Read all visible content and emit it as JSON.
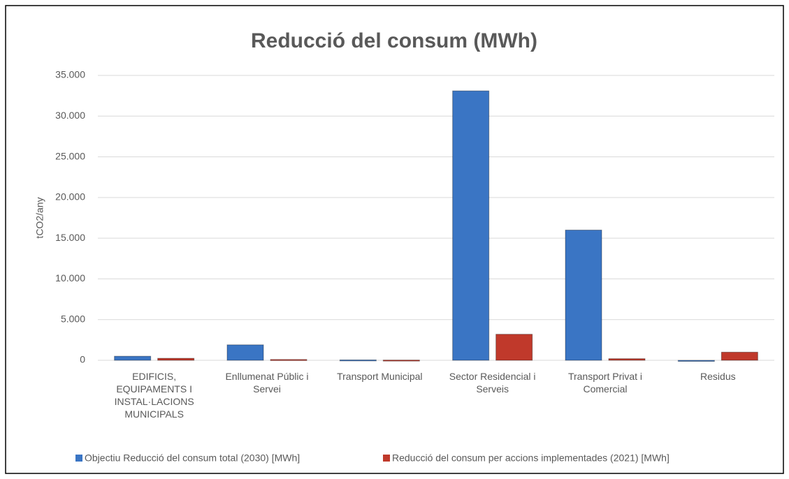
{
  "chart_data": {
    "type": "bar",
    "title": "Reducció del consum (MWh)",
    "y_label": "tCO2/any",
    "categories": [
      "EDIFICIS, EQUIPAMENTS I INSTAL·LACIONS MUNICIPALS",
      "Enllumenat Públic i Servei",
      "Transport Municipal",
      "Sector Residencial i Serveis",
      "Transport Privat i Comercial",
      "Residus"
    ],
    "series": [
      {
        "name": "Objectiu Reducció del consum total (2030) [MWh]",
        "color": "#3a75c4",
        "values": [
          500,
          1900,
          50,
          33100,
          16000,
          0
        ]
      },
      {
        "name": "Reducció del consum per accions implementades (2021) [MWh]",
        "color": "#c0392b",
        "values": [
          250,
          100,
          30,
          3200,
          200,
          1000
        ]
      }
    ],
    "ylim": [
      0,
      35000
    ],
    "yticks": [
      0,
      {
        "value": 5000,
        "label": "5.000"
      },
      {
        "value": 10000,
        "label": "10.000"
      },
      {
        "value": 15000,
        "label": "15.000"
      },
      {
        "value": 20000,
        "label": "20.000"
      },
      {
        "value": 25000,
        "label": "25.000"
      },
      {
        "value": 30000,
        "label": "30.000"
      },
      {
        "value": 35000,
        "label": "35.000"
      }
    ],
    "grid": true,
    "legend": "bottom"
  }
}
